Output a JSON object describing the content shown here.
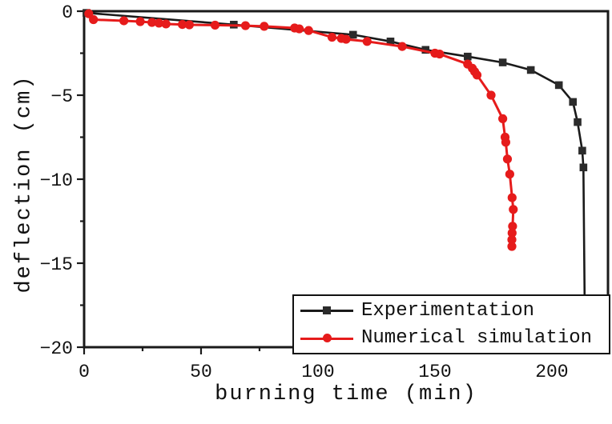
{
  "figure": {
    "background": "#ffffff",
    "frame_color": "#1a1a1a"
  },
  "chart_data": {
    "type": "line",
    "title": "",
    "xlabel": "burning time (min)",
    "ylabel": "deflection (cm)",
    "xlim": [
      0,
      224
    ],
    "ylim": [
      -20,
      0
    ],
    "grid": false,
    "legend_position": "bottom-right",
    "x_ticks": {
      "values": [
        0,
        50,
        100,
        150,
        200
      ],
      "labels": [
        "0",
        "50",
        "100",
        "150",
        "200"
      ],
      "minor": [
        25,
        75,
        125,
        175
      ]
    },
    "y_ticks": {
      "values": [
        0,
        -5,
        -10,
        -15,
        -20
      ],
      "labels": [
        "0",
        "−5",
        "−10",
        "−15",
        "−20"
      ],
      "minor": [
        -2.5,
        -7.5,
        -12.5,
        -17.5
      ]
    },
    "series": [
      {
        "name": "Experimentation",
        "color": "#1a1a1a",
        "marker": "square",
        "marker_fill": "#2b2b2b",
        "points": [
          [
            1,
            -0.1
          ],
          [
            64,
            -0.8
          ],
          [
            115,
            -1.4
          ],
          [
            131,
            -1.8
          ],
          [
            146,
            -2.3
          ],
          [
            164,
            -2.7
          ],
          [
            179,
            -3.05
          ],
          [
            191,
            -3.5
          ],
          [
            203,
            -4.4
          ],
          [
            209,
            -5.4
          ],
          [
            211,
            -6.6
          ],
          [
            213,
            -8.3
          ],
          [
            213.5,
            -9.3
          ]
        ],
        "tail": [
          [
            214,
            -17.0
          ]
        ]
      },
      {
        "name": "Numerical simulation",
        "color": "#e61b1b",
        "marker": "circle",
        "marker_fill": "#e61b1b",
        "points": [
          [
            2,
            -0.15
          ],
          [
            4,
            -0.5
          ],
          [
            17,
            -0.57
          ],
          [
            24,
            -0.62
          ],
          [
            29,
            -0.67
          ],
          [
            32,
            -0.71
          ],
          [
            35,
            -0.76
          ],
          [
            42,
            -0.79
          ],
          [
            45,
            -0.81
          ],
          [
            56,
            -0.83
          ],
          [
            69,
            -0.86
          ],
          [
            77,
            -0.9
          ],
          [
            90,
            -1.0
          ],
          [
            92,
            -1.05
          ],
          [
            96,
            -1.15
          ],
          [
            106,
            -1.55
          ],
          [
            110,
            -1.62
          ],
          [
            112,
            -1.67
          ],
          [
            121,
            -1.8
          ],
          [
            136,
            -2.1
          ],
          [
            150,
            -2.5
          ],
          [
            152,
            -2.55
          ],
          [
            164,
            -3.15
          ],
          [
            166,
            -3.4
          ],
          [
            167,
            -3.6
          ],
          [
            168,
            -3.8
          ],
          [
            174,
            -5.0
          ],
          [
            179,
            -6.4
          ],
          [
            180,
            -7.5
          ],
          [
            180.3,
            -7.8
          ],
          [
            181,
            -8.8
          ],
          [
            182,
            -9.7
          ],
          [
            183,
            -11.1
          ],
          [
            183.5,
            -11.8
          ],
          [
            183.2,
            -12.8
          ],
          [
            183,
            -13.2
          ],
          [
            182.9,
            -13.6
          ],
          [
            182.9,
            -14.0
          ]
        ],
        "tail": []
      }
    ]
  },
  "legend": {
    "items": [
      {
        "label": "Experimentation"
      },
      {
        "label": "Numerical simulation"
      }
    ]
  }
}
